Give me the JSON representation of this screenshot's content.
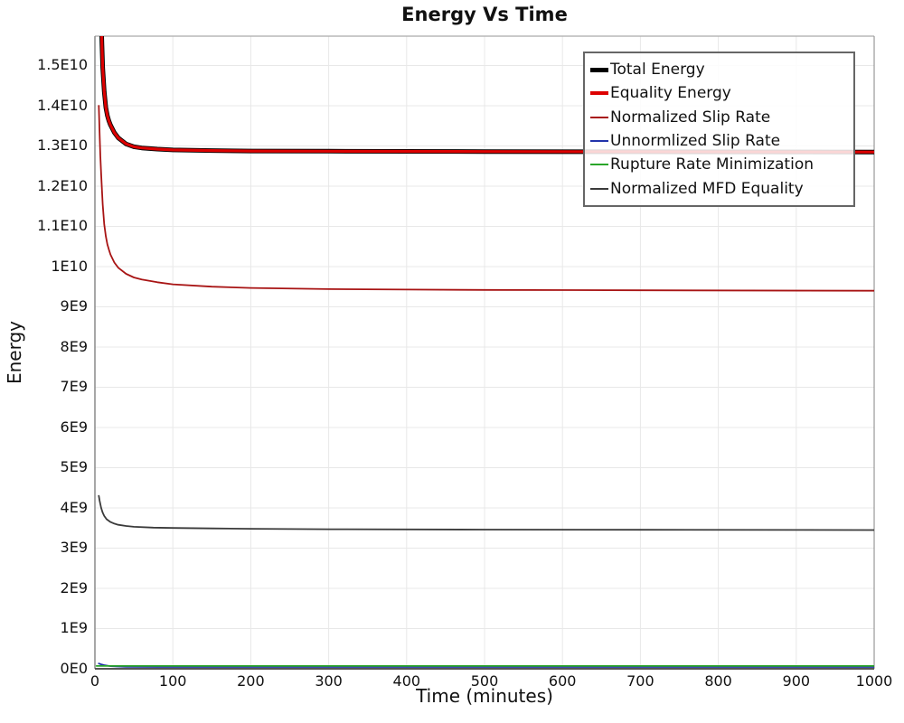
{
  "chart_data": {
    "type": "line",
    "title": "Energy Vs Time",
    "xlabel": "Time (minutes)",
    "ylabel": "Energy",
    "xlim": [
      0,
      1000
    ],
    "ylim": [
      0,
      15730000000.0
    ],
    "grid": true,
    "legend_position": "upper right",
    "x_ticks": [
      0,
      100,
      200,
      300,
      400,
      500,
      600,
      700,
      800,
      900,
      1000
    ],
    "x_tick_labels": [
      "0",
      "100",
      "200",
      "300",
      "400",
      "500",
      "600",
      "700",
      "800",
      "900",
      "1000"
    ],
    "y_ticks": [
      0,
      1000000000.0,
      2000000000.0,
      3000000000.0,
      4000000000.0,
      5000000000.0,
      6000000000.0,
      7000000000.0,
      8000000000.0,
      9000000000.0,
      10000000000.0,
      11000000000.0,
      12000000000.0,
      13000000000.0,
      14000000000.0,
      15000000000.0
    ],
    "y_tick_labels": [
      "0E0",
      "1E9",
      "2E9",
      "3E9",
      "4E9",
      "5E9",
      "6E9",
      "7E9",
      "8E9",
      "9E9",
      "1E10",
      "1.1E10",
      "1.2E10",
      "1.3E10",
      "1.4E10",
      "1.5E10"
    ],
    "colors": {
      "grid": "#e8e8e8",
      "axis_left": "#8a8a8a",
      "axis_bottom": "#555555",
      "axis_top": "#aaaaaa",
      "axis_right": "#999999",
      "legend_border": "#666666"
    },
    "series": [
      {
        "name": "Total Energy",
        "color": "#000000",
        "width": 5,
        "zorder": 5,
        "x": [
          5,
          6,
          7,
          8,
          9,
          10,
          12,
          14,
          16,
          18,
          20,
          25,
          30,
          40,
          50,
          60,
          80,
          100,
          150,
          200,
          300,
          400,
          500,
          700,
          1000
        ],
        "y": [
          19500000000.0,
          18200000000.0,
          17100000000.0,
          16200000000.0,
          15500000000.0,
          14950000000.0,
          14350000000.0,
          13950000000.0,
          13750000000.0,
          13620000000.0,
          13520000000.0,
          13330000000.0,
          13200000000.0,
          13050000000.0,
          12980000000.0,
          12950000000.0,
          12920000000.0,
          12900000000.0,
          12885000000.0,
          12875000000.0,
          12870000000.0,
          12865000000.0,
          12860000000.0,
          12855000000.0,
          12850000000.0
        ]
      },
      {
        "name": "Equality Energy",
        "color": "#dd0000",
        "width": 3.2,
        "zorder": 6,
        "x": [
          5,
          6,
          7,
          8,
          9,
          10,
          12,
          14,
          16,
          18,
          20,
          25,
          30,
          40,
          50,
          60,
          80,
          100,
          150,
          200,
          300,
          400,
          500,
          700,
          1000
        ],
        "y": [
          19500000000.0,
          18200000000.0,
          17100000000.0,
          16200000000.0,
          15500000000.0,
          14950000000.0,
          14350000000.0,
          13950000000.0,
          13750000000.0,
          13620000000.0,
          13520000000.0,
          13330000000.0,
          13200000000.0,
          13050000000.0,
          12980000000.0,
          12950000000.0,
          12920000000.0,
          12900000000.0,
          12885000000.0,
          12875000000.0,
          12870000000.0,
          12865000000.0,
          12860000000.0,
          12855000000.0,
          12850000000.0
        ]
      },
      {
        "name": "Normalized Slip Rate",
        "color": "#a81414",
        "width": 1.8,
        "zorder": 4,
        "x": [
          5,
          6,
          7,
          8,
          9,
          10,
          12,
          14,
          16,
          18,
          20,
          25,
          30,
          40,
          50,
          60,
          80,
          100,
          150,
          200,
          300,
          400,
          500,
          700,
          1000
        ],
        "y": [
          14000000000.0,
          13300000000.0,
          12750000000.0,
          12300000000.0,
          11900000000.0,
          11550000000.0,
          11050000000.0,
          10750000000.0,
          10550000000.0,
          10420000000.0,
          10300000000.0,
          10100000000.0,
          9970000000.0,
          9820000000.0,
          9730000000.0,
          9680000000.0,
          9610000000.0,
          9560000000.0,
          9500000000.0,
          9470000000.0,
          9440000000.0,
          9430000000.0,
          9420000000.0,
          9410000000.0,
          9400000000.0
        ]
      },
      {
        "name": "Unnormlized Slip Rate",
        "color": "#2233aa",
        "width": 1.8,
        "zorder": 1,
        "x": [
          5,
          8,
          12,
          20,
          40,
          80,
          1000
        ],
        "y": [
          130000000.0,
          110000000.0,
          90000000.0,
          65000000.0,
          50000000.0,
          45000000.0,
          45000000.0
        ]
      },
      {
        "name": "Rupture Rate Minimization",
        "color": "#2aa52a",
        "width": 1.8,
        "zorder": 2,
        "x": [
          2,
          1000
        ],
        "y": [
          70000000.0,
          70000000.0
        ]
      },
      {
        "name": "Normalized MFD Equality",
        "color": "#3a3a3a",
        "width": 1.8,
        "zorder": 3,
        "x": [
          5,
          6,
          8,
          10,
          12,
          15,
          20,
          25,
          30,
          40,
          50,
          75,
          100,
          150,
          200,
          300,
          500,
          700,
          1000
        ],
        "y": [
          4300000000.0,
          4180000000.0,
          4000000000.0,
          3880000000.0,
          3800000000.0,
          3720000000.0,
          3650000000.0,
          3610000000.0,
          3580000000.0,
          3550000000.0,
          3530000000.0,
          3510000000.0,
          3500000000.0,
          3490000000.0,
          3480000000.0,
          3470000000.0,
          3460000000.0,
          3455000000.0,
          3450000000.0
        ]
      }
    ]
  }
}
